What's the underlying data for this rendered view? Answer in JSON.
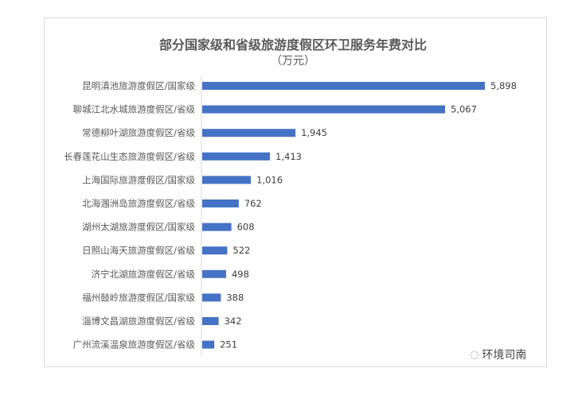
{
  "chart_data": {
    "type": "bar",
    "orientation": "horizontal",
    "title": "部分国家级和省级旅游度假区环卫服务年费对比",
    "subtitle": "（万元）",
    "categories": [
      "昆明滇池旅游度假区/国家级",
      "聊城江北水城旅游度假区/省级",
      "常德柳叶湖旅游度假区/省级",
      "长春莲花山生态旅游度假区/省级",
      "上海国际旅游度假区/国家级",
      "北海涠洲岛旅游度假区/省级",
      "湖州太湖旅游度假区/国家级",
      "日照山海天旅游度假区/省级",
      "济宁北湖旅游度假区/省级",
      "福州鼓岭旅游度假区/国家级",
      "淄博文昌湖旅游度假区/省级",
      "广州流溪温泉旅游度假区/省级"
    ],
    "values": [
      5898,
      5067,
      1945,
      1413,
      1016,
      762,
      608,
      522,
      498,
      388,
      342,
      251
    ],
    "value_labels": [
      "5,898",
      "5,067",
      "1,945",
      "1,413",
      "1,016",
      "762",
      "608",
      "522",
      "498",
      "388",
      "342",
      "251"
    ],
    "bar_color": "#4472c4",
    "grid": false
  },
  "watermark": {
    "text": "环境司南",
    "icon": "wechat-icon"
  }
}
